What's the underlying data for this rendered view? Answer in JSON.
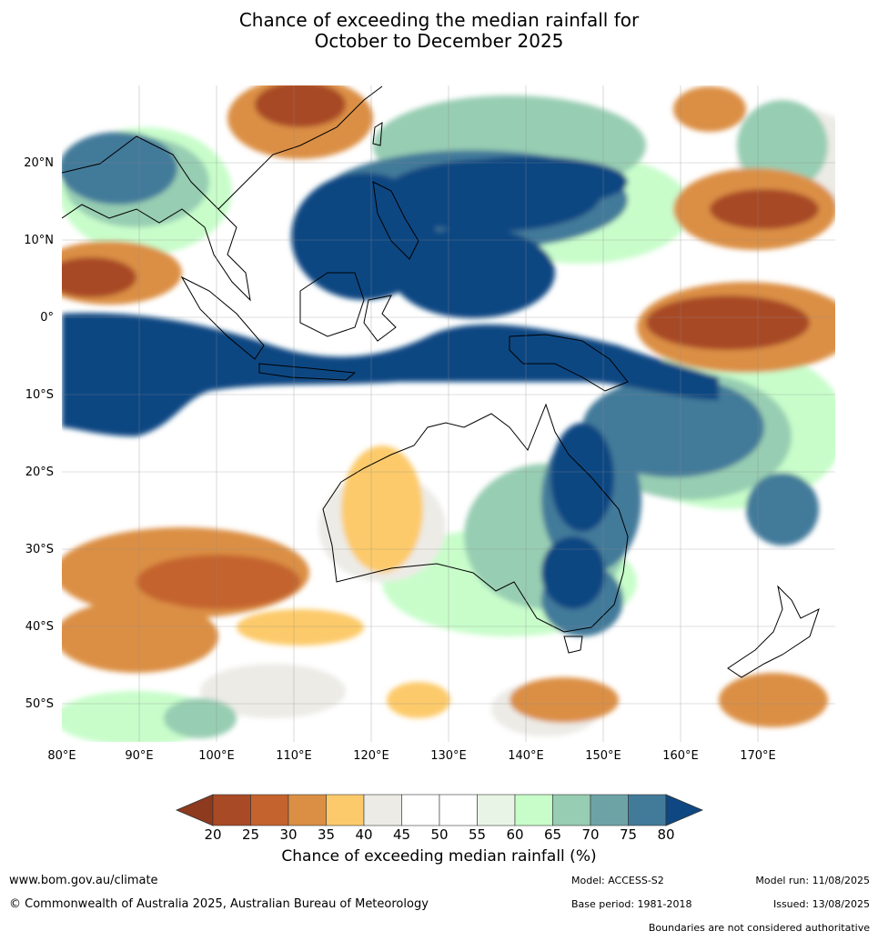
{
  "title": {
    "line1": "Chance of exceeding the median rainfall for",
    "line2": "October to December 2025"
  },
  "map": {
    "lon_labels": [
      "80°E",
      "90°E",
      "100°E",
      "110°E",
      "120°E",
      "130°E",
      "140°E",
      "150°E",
      "160°E",
      "170°E"
    ],
    "lat_labels": [
      "20°N",
      "10°N",
      "0°",
      "10°S",
      "20°S",
      "30°S",
      "40°S",
      "50°S"
    ],
    "extent": {
      "lon_min": 80,
      "lon_max": 180,
      "lat_min": -55,
      "lat_max": 30
    }
  },
  "colorbar": {
    "ticks": [
      "20",
      "25",
      "30",
      "35",
      "40",
      "45",
      "50",
      "55",
      "60",
      "65",
      "70",
      "75",
      "80"
    ],
    "colors": [
      "#a84a25",
      "#c4632d",
      "#db8f44",
      "#fcca6b",
      "#ecebe6",
      "#ffffff",
      "#ffffff",
      "#e8f5e6",
      "#c8fdca",
      "#97cdb2",
      "#6ea3a6",
      "#427a9a"
    ],
    "under_color": "#8d3a1e",
    "over_color": "#0f4782",
    "label": "Chance of exceeding median rainfall (%)"
  },
  "footer": {
    "website": "www.bom.gov.au/climate",
    "copyright": "© Commonwealth of Australia 2025, Australian Bureau of Meteorology",
    "model": "Model: ACCESS-S2",
    "model_run": "Model run: 11/08/2025",
    "base_period": "Base period: 1981-2018",
    "issued": "Issued: 13/08/2025",
    "disclaimer": "Boundaries are not considered authoritative"
  }
}
